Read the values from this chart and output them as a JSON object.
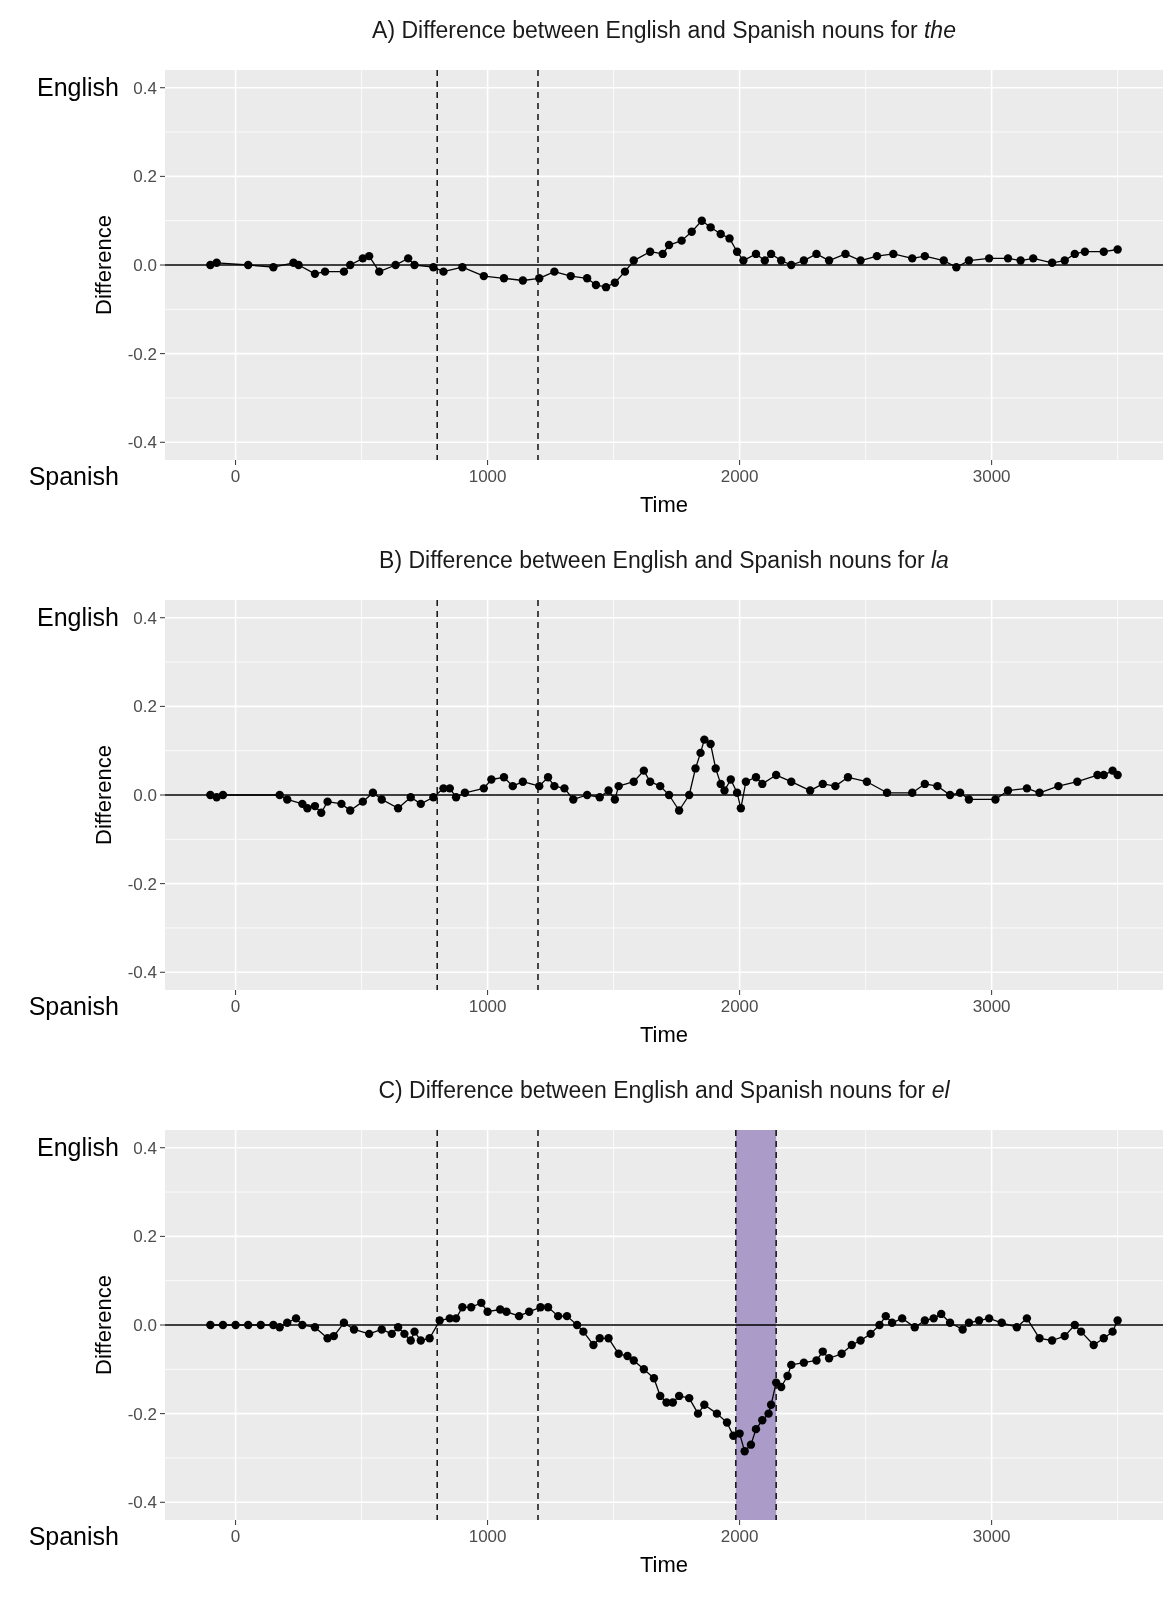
{
  "chart_data": [
    {
      "type": "line",
      "title": "A) Difference between English and Spanish nouns for the",
      "xlabel": "Time",
      "ylabel": "Difference",
      "annotations": [
        "English",
        "Spanish"
      ],
      "marker": "circle",
      "line_style": "solid",
      "grid": true,
      "xlim": [
        -280,
        3680
      ],
      "ylim": [
        -0.44,
        0.44
      ],
      "xticks": [
        0,
        1000,
        2000,
        3000
      ],
      "yticks": [
        {
          "value": -0.4,
          "label": "-0.4"
        },
        {
          "value": -0.2,
          "label": "-0.2"
        },
        {
          "value": 0,
          "label": "0.0"
        },
        {
          "value": 0.2,
          "label": "0.2"
        },
        {
          "value": 0.4,
          "label": "0.4"
        }
      ],
      "ref_lines": [
        {
          "axis": "y",
          "value": 0,
          "color": "#000000",
          "line_style": "solid"
        },
        {
          "axis": "x",
          "value": 800,
          "color": "#000000",
          "line_style": "dashed"
        },
        {
          "axis": "x",
          "value": 1200,
          "color": "#000000",
          "line_style": "dashed"
        }
      ],
      "x": [
        -100,
        -75,
        50,
        150,
        230,
        250,
        315,
        355,
        430,
        455,
        505,
        530,
        570,
        635,
        685,
        710,
        785,
        825,
        900,
        985,
        1065,
        1140,
        1205,
        1265,
        1330,
        1395,
        1430,
        1470,
        1505,
        1545,
        1580,
        1645,
        1695,
        1720,
        1770,
        1810,
        1850,
        1885,
        1925,
        1960,
        1990,
        2015,
        2065,
        2100,
        2125,
        2165,
        2205,
        2255,
        2305,
        2355,
        2420,
        2480,
        2545,
        2610,
        2685,
        2735,
        2810,
        2860,
        2910,
        2990,
        3065,
        3115,
        3165,
        3240,
        3290,
        3330,
        3370,
        3445,
        3500
      ],
      "series": [
        {
          "color": "#000000",
          "values": [
            0,
            0.005,
            0,
            -0.005,
            0.005,
            0,
            -0.02,
            -0.015,
            -0.015,
            0,
            0.015,
            0.02,
            -0.015,
            0,
            0.015,
            0,
            -0.005,
            -0.015,
            -0.005,
            -0.025,
            -0.03,
            -0.035,
            -0.03,
            -0.015,
            -0.025,
            -0.03,
            -0.045,
            -0.05,
            -0.04,
            -0.015,
            0.01,
            0.03,
            0.025,
            0.045,
            0.055,
            0.075,
            0.1,
            0.085,
            0.07,
            0.06,
            0.03,
            0.01,
            0.025,
            0.01,
            0.025,
            0.01,
            0,
            0.01,
            0.025,
            0.01,
            0.025,
            0.01,
            0.02,
            0.025,
            0.015,
            0.02,
            0.01,
            -0.005,
            0.01,
            0.015,
            0.015,
            0.01,
            0.015,
            0.005,
            0.01,
            0.025,
            0.03,
            0.03,
            0.035
          ]
        }
      ]
    },
    {
      "type": "line",
      "title": "B) Difference between English and Spanish nouns for la",
      "xlabel": "Time",
      "ylabel": "Difference",
      "annotations": [
        "English",
        "Spanish"
      ],
      "marker": "circle",
      "line_style": "solid",
      "grid": true,
      "xlim": [
        -280,
        3680
      ],
      "ylim": [
        -0.44,
        0.44
      ],
      "xticks": [
        0,
        1000,
        2000,
        3000
      ],
      "yticks": [
        {
          "value": -0.4,
          "label": "-0.4"
        },
        {
          "value": -0.2,
          "label": "-0.2"
        },
        {
          "value": 0,
          "label": "0.0"
        },
        {
          "value": 0.2,
          "label": "0.2"
        },
        {
          "value": 0.4,
          "label": "0.4"
        }
      ],
      "ref_lines": [
        {
          "axis": "y",
          "value": 0,
          "color": "#000000",
          "line_style": "solid"
        },
        {
          "axis": "x",
          "value": 800,
          "color": "#000000",
          "line_style": "dashed"
        },
        {
          "axis": "x",
          "value": 1200,
          "color": "#000000",
          "line_style": "dashed"
        }
      ],
      "x": [
        -100,
        -75,
        -50,
        175,
        205,
        265,
        285,
        315,
        340,
        365,
        420,
        455,
        505,
        545,
        580,
        645,
        695,
        735,
        785,
        825,
        850,
        875,
        910,
        985,
        1015,
        1065,
        1100,
        1140,
        1205,
        1240,
        1265,
        1305,
        1340,
        1395,
        1445,
        1480,
        1505,
        1520,
        1580,
        1620,
        1645,
        1685,
        1720,
        1760,
        1800,
        1825,
        1845,
        1860,
        1885,
        1905,
        1925,
        1940,
        1965,
        1990,
        2005,
        2025,
        2065,
        2090,
        2145,
        2205,
        2280,
        2330,
        2380,
        2430,
        2505,
        2585,
        2685,
        2735,
        2785,
        2835,
        2875,
        2910,
        3015,
        3065,
        3140,
        3190,
        3265,
        3340,
        3420,
        3445,
        3480,
        3500
      ],
      "series": [
        {
          "color": "#000000",
          "values": [
            0,
            -0.005,
            0,
            0,
            -0.01,
            -0.02,
            -0.03,
            -0.025,
            -0.04,
            -0.015,
            -0.02,
            -0.035,
            -0.015,
            0.005,
            -0.01,
            -0.03,
            -0.005,
            -0.02,
            -0.005,
            0.015,
            0.015,
            -0.005,
            0.005,
            0.015,
            0.035,
            0.04,
            0.02,
            0.03,
            0.02,
            0.04,
            0.02,
            0.015,
            -0.01,
            0,
            -0.005,
            0.01,
            -0.01,
            0.02,
            0.03,
            0.055,
            0.03,
            0.02,
            0,
            -0.035,
            0,
            0.06,
            0.095,
            0.125,
            0.115,
            0.06,
            0.025,
            0.01,
            0.035,
            0.005,
            -0.03,
            0.03,
            0.04,
            0.025,
            0.045,
            0.03,
            0.01,
            0.025,
            0.02,
            0.04,
            0.03,
            0.005,
            0.005,
            0.025,
            0.02,
            0,
            0.005,
            -0.01,
            -0.01,
            0.01,
            0.015,
            0.005,
            0.02,
            0.03,
            0.045,
            0.045,
            0.055,
            0.045
          ]
        }
      ]
    },
    {
      "type": "line",
      "title": "C) Difference between English and Spanish nouns for el",
      "xlabel": "Time",
      "ylabel": "Difference",
      "annotations": [
        "English",
        "Spanish"
      ],
      "marker": "circle",
      "line_style": "solid",
      "grid": true,
      "xlim": [
        -280,
        3680
      ],
      "ylim": [
        -0.44,
        0.44
      ],
      "xticks": [
        0,
        1000,
        2000,
        3000
      ],
      "yticks": [
        {
          "value": -0.4,
          "label": "-0.4"
        },
        {
          "value": -0.2,
          "label": "-0.2"
        },
        {
          "value": 0,
          "label": "0.0"
        },
        {
          "value": 0.2,
          "label": "0.2"
        },
        {
          "value": 0.4,
          "label": "0.4"
        }
      ],
      "bands": [
        {
          "axis": "x",
          "from": 1985,
          "to": 2145,
          "color": "#ab9bc8"
        }
      ],
      "ref_lines": [
        {
          "axis": "y",
          "value": 0,
          "color": "#000000",
          "line_style": "solid"
        },
        {
          "axis": "x",
          "value": 800,
          "color": "#000000",
          "line_style": "dashed"
        },
        {
          "axis": "x",
          "value": 1200,
          "color": "#000000",
          "line_style": "dashed"
        },
        {
          "axis": "x",
          "value": 1985,
          "color": "#000000",
          "line_style": "dashed"
        },
        {
          "axis": "x",
          "value": 2145,
          "color": "#000000",
          "line_style": "dashed"
        }
      ],
      "x": [
        -100,
        -50,
        0,
        50,
        100,
        150,
        175,
        205,
        240,
        265,
        315,
        365,
        390,
        430,
        470,
        530,
        580,
        620,
        645,
        670,
        695,
        710,
        735,
        770,
        810,
        850,
        875,
        900,
        935,
        975,
        1000,
        1050,
        1075,
        1125,
        1165,
        1210,
        1240,
        1280,
        1315,
        1355,
        1380,
        1420,
        1445,
        1480,
        1520,
        1555,
        1580,
        1620,
        1660,
        1685,
        1710,
        1735,
        1760,
        1800,
        1835,
        1860,
        1910,
        1950,
        1975,
        2000,
        2020,
        2045,
        2065,
        2090,
        2115,
        2125,
        2145,
        2165,
        2190,
        2205,
        2255,
        2305,
        2330,
        2355,
        2405,
        2445,
        2480,
        2520,
        2555,
        2580,
        2605,
        2645,
        2695,
        2735,
        2770,
        2800,
        2835,
        2885,
        2910,
        2950,
        2990,
        3040,
        3100,
        3140,
        3190,
        3240,
        3290,
        3330,
        3355,
        3405,
        3445,
        3480,
        3500
      ],
      "series": [
        {
          "color": "#000000",
          "values": [
            0,
            0,
            0,
            0,
            0,
            0,
            -0.005,
            0.005,
            0.015,
            0,
            -0.005,
            -0.03,
            -0.025,
            0.005,
            -0.01,
            -0.02,
            -0.01,
            -0.02,
            -0.005,
            -0.02,
            -0.035,
            -0.015,
            -0.035,
            -0.03,
            0.01,
            0.015,
            0.015,
            0.04,
            0.04,
            0.05,
            0.03,
            0.035,
            0.03,
            0.02,
            0.03,
            0.04,
            0.04,
            0.02,
            0.02,
            0,
            -0.015,
            -0.045,
            -0.03,
            -0.03,
            -0.065,
            -0.07,
            -0.08,
            -0.1,
            -0.12,
            -0.16,
            -0.175,
            -0.175,
            -0.16,
            -0.165,
            -0.2,
            -0.18,
            -0.2,
            -0.22,
            -0.25,
            -0.245,
            -0.285,
            -0.27,
            -0.235,
            -0.215,
            -0.2,
            -0.18,
            -0.13,
            -0.14,
            -0.115,
            -0.09,
            -0.085,
            -0.08,
            -0.06,
            -0.075,
            -0.065,
            -0.045,
            -0.035,
            -0.02,
            0,
            0.02,
            0.005,
            0.015,
            -0.005,
            0.01,
            0.015,
            0.025,
            0.005,
            -0.01,
            0.005,
            0.01,
            0.015,
            0.005,
            -0.005,
            0.015,
            -0.03,
            -0.035,
            -0.025,
            0,
            -0.015,
            -0.045,
            -0.03,
            -0.015,
            0.01
          ]
        }
      ]
    }
  ]
}
